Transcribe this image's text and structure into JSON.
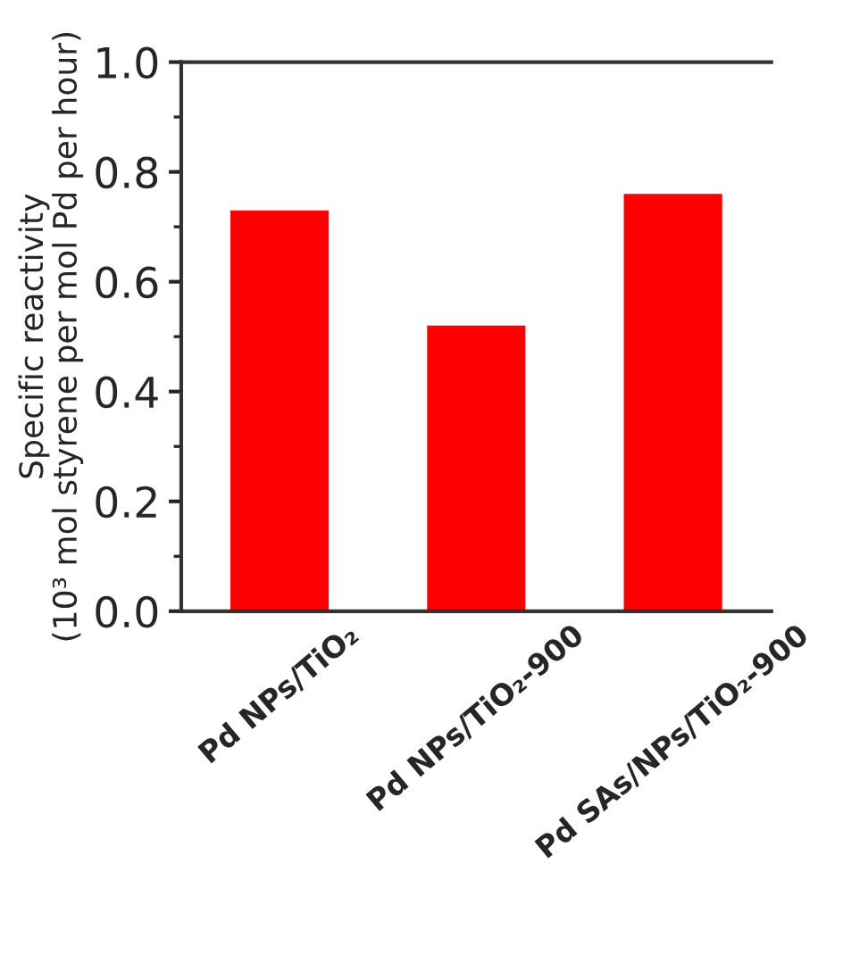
{
  "chart_data": {
    "type": "bar",
    "ylabel": "Specific reactivity\n(10³ mol styrene per mol Pd per hour)",
    "categories": [
      "Pd NPs/TiO₂",
      "Pd NPs/TiO₂-900",
      "Pd SAs/NPs/TiO₂-900"
    ],
    "values": [
      0.73,
      0.52,
      0.76
    ],
    "color": "#ff0000",
    "ylim": [
      0,
      1.0
    ],
    "yticks": [
      {
        "value": 0,
        "label": "0.0"
      },
      0.2,
      0.4,
      0.6,
      0.8,
      {
        "value": 1,
        "label": "1.0"
      }
    ],
    "grid": false
  }
}
